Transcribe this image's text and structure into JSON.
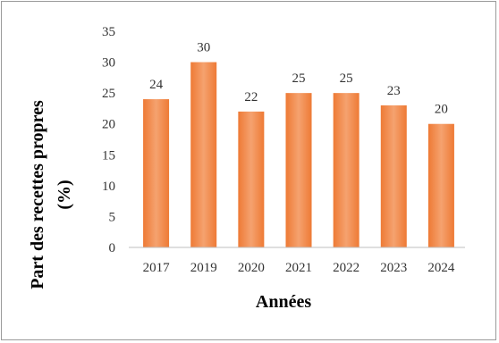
{
  "chart_data": {
    "type": "bar",
    "categories": [
      "2017",
      "2019",
      "2020",
      "2021",
      "2022",
      "2023",
      "2024"
    ],
    "values": [
      24,
      30,
      22,
      25,
      25,
      23,
      20
    ],
    "title": "",
    "xlabel": "Années",
    "ylabel": "Part des recettes propres (%)",
    "ylabel_lines": [
      "Part des recettes propres",
      "(%)"
    ],
    "yticks": [
      0,
      5,
      10,
      15,
      20,
      25,
      30,
      35
    ],
    "ylim": [
      0,
      35
    ],
    "grid": false,
    "legend": "none",
    "bar_color": "#ee7a35",
    "bar_color_light": "#f5a26f"
  }
}
